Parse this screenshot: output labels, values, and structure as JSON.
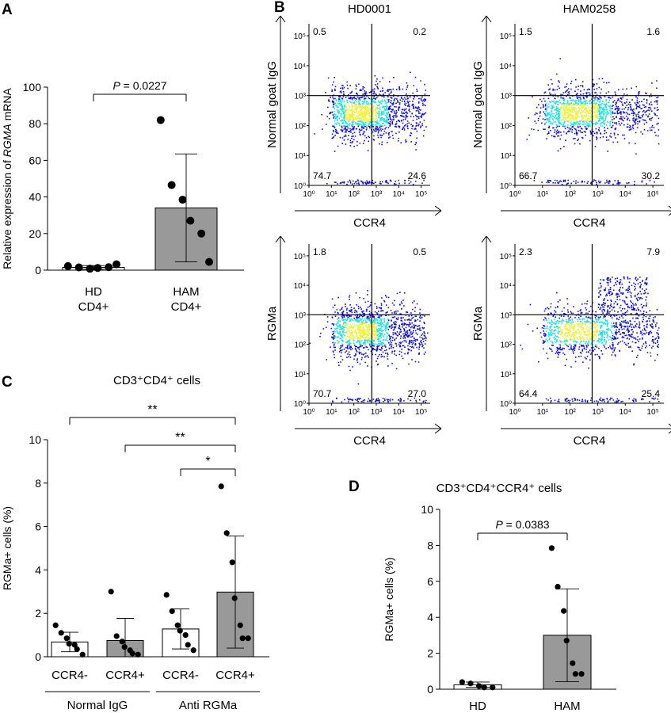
{
  "panels": {
    "a": "A",
    "b": "B",
    "c": "C",
    "d": "D"
  },
  "colors": {
    "bar_white": "#ffffff",
    "bar_grey": "#999999",
    "dot": "#000000",
    "flow_base": "#1010d0",
    "flow_mid": "#20e0e0",
    "flow_hot": "#f0f040"
  },
  "chart_data": [
    {
      "id": "A",
      "type": "bar",
      "title": "",
      "ylabel": "Relative expression of RGMA mRNA",
      "ylabel_parts": [
        "Relative expression of ",
        "RGMA",
        " mRNA"
      ],
      "ylim": [
        0,
        100
      ],
      "yticks": [
        "0",
        "20",
        "40",
        "60",
        "80",
        "100"
      ],
      "categories": [
        [
          "HD",
          "CD4+"
        ],
        [
          "HAM",
          "CD4+"
        ]
      ],
      "bar_fill": [
        "white",
        "grey"
      ],
      "means": [
        1.5,
        34
      ],
      "sd": [
        1,
        29.5
      ],
      "points": [
        [
          2.2,
          1.5,
          0.8,
          1.2,
          1.6,
          3.2
        ],
        [
          82,
          46.5,
          38.5,
          27,
          20,
          4.5
        ]
      ],
      "comparisons": [
        {
          "from": 0,
          "to": 1,
          "label": "P = 0.0227",
          "label_parts": [
            "P",
            " = 0.0227"
          ]
        }
      ]
    },
    {
      "id": "B",
      "type": "scatter",
      "subtype": "flow-cytometry-quadrant",
      "columns": [
        "HD0001",
        "HAM0258"
      ],
      "ylabels": [
        "Normal goat IgG",
        "RGMa"
      ],
      "xlabel": "CCR4",
      "axis_tick_labels": [
        "10⁰",
        "10¹",
        "10²",
        "10³",
        "10⁴",
        "10⁵"
      ],
      "axis_range_log10": [
        0,
        5.4
      ],
      "gate_x_log10": 2.8,
      "gate_y_log10": 3.0,
      "plots": [
        {
          "sample": "HD0001",
          "stain": "Normal goat IgG",
          "quadrants": {
            "upper_left": "0.5",
            "upper_right": "0.2",
            "lower_left": "74.7",
            "lower_right": "24.6"
          }
        },
        {
          "sample": "HAM0258",
          "stain": "Normal goat IgG",
          "quadrants": {
            "upper_left": "1.5",
            "upper_right": "1.6",
            "lower_left": "66.7",
            "lower_right": "30.2"
          }
        },
        {
          "sample": "HD0001",
          "stain": "RGMa",
          "quadrants": {
            "upper_left": "1.8",
            "upper_right": "0.5",
            "lower_left": "70.7",
            "lower_right": "27.0"
          }
        },
        {
          "sample": "HAM0258",
          "stain": "RGMa",
          "quadrants": {
            "upper_left": "2.3",
            "upper_right": "7.9",
            "lower_left": "64.4",
            "lower_right": "25.4"
          }
        }
      ]
    },
    {
      "id": "C",
      "type": "bar",
      "title": "CD3⁺CD4⁺ cells",
      "ylabel": "RGMa+ cells (%)",
      "ylim": [
        0,
        10
      ],
      "yticks": [
        "0",
        "2",
        "4",
        "6",
        "8",
        "10"
      ],
      "categories": [
        "CCR4-",
        "CCR4+",
        "CCR4-",
        "CCR4+"
      ],
      "groups": [
        {
          "label": "Normal IgG",
          "members": [
            0,
            1
          ]
        },
        {
          "label": "Anti RGMa",
          "members": [
            2,
            3
          ]
        }
      ],
      "bar_fill": [
        "white",
        "grey",
        "white",
        "grey"
      ],
      "means": [
        0.68,
        0.75,
        1.28,
        2.98
      ],
      "sd": [
        0.45,
        1.02,
        0.92,
        2.58
      ],
      "points": [
        [
          1.45,
          1.1,
          0.85,
          0.6,
          0.55,
          0.35,
          0.1
        ],
        [
          3.0,
          0.95,
          0.7,
          0.45,
          0.3,
          0.15,
          0.1
        ],
        [
          2.85,
          2.1,
          1.45,
          1.2,
          1.0,
          0.55,
          0.3
        ],
        [
          7.85,
          5.7,
          4.35,
          2.7,
          1.45,
          0.85,
          0.85
        ]
      ],
      "comparisons": [
        {
          "from": 0,
          "to": 3,
          "label": "**"
        },
        {
          "from": 1,
          "to": 3,
          "label": "**"
        },
        {
          "from": 2,
          "to": 3,
          "label": "*"
        }
      ]
    },
    {
      "id": "D",
      "type": "bar",
      "title": "CD3⁺CD4⁺CCR4⁺ cells",
      "ylabel": "RGMa+ cells (%)",
      "ylim": [
        0,
        10
      ],
      "yticks": [
        "0",
        "2",
        "4",
        "6",
        "8",
        "10"
      ],
      "categories": [
        "HD",
        "HAM"
      ],
      "bar_fill": [
        "white",
        "grey"
      ],
      "means": [
        0.25,
        3.0
      ],
      "sd": [
        0.15,
        2.58
      ],
      "points": [
        [
          0.4,
          0.32,
          0.18,
          0.1,
          0.1
        ],
        [
          7.85,
          5.7,
          4.35,
          2.7,
          1.45,
          0.85,
          0.85
        ]
      ],
      "comparisons": [
        {
          "from": 0,
          "to": 1,
          "label": "P = 0.0383",
          "label_parts": [
            "P",
            " = 0.0383"
          ]
        }
      ]
    }
  ]
}
